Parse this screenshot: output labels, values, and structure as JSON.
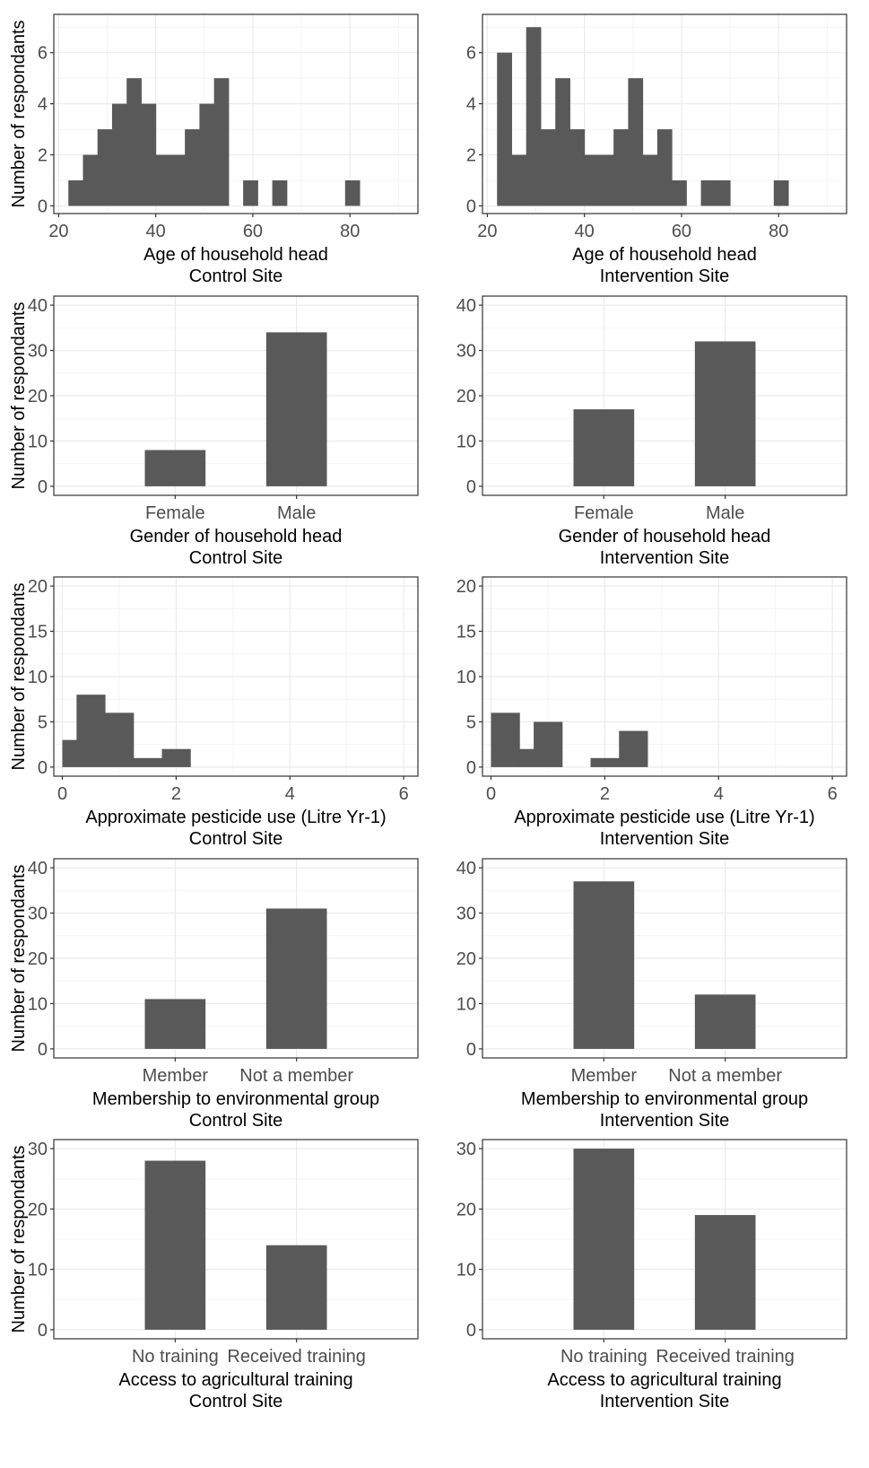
{
  "figure": {
    "y_axis_label": "Number of respondants"
  },
  "colors": {
    "bar": "#595959",
    "grid_major": "#ebebeb",
    "grid_minor": "#f4f4f4",
    "panel_border": "#333333",
    "tick_text": "#4d4d4d",
    "axis_title": "#000000"
  },
  "chart_data": [
    {
      "id": "age-control",
      "type": "bar",
      "subtype": "histogram",
      "site": "Control Site",
      "xlabel": "Age of household head",
      "ylabel": "Number of respondants",
      "xlim": [
        19,
        94
      ],
      "ylim": [
        -0.3,
        7.5
      ],
      "xticks": [
        20,
        40,
        60,
        80
      ],
      "yticks": [
        0,
        2,
        4,
        6
      ],
      "bin_width": 3,
      "x": [
        23.5,
        26.5,
        29.5,
        32.5,
        35.5,
        38.5,
        41.5,
        44.5,
        47.5,
        50.5,
        53.5,
        59.5,
        65.5,
        80.5
      ],
      "values": [
        1,
        2,
        3,
        4,
        5,
        4,
        2,
        2,
        3,
        4,
        5,
        1,
        1,
        1
      ]
    },
    {
      "id": "age-intervention",
      "type": "bar",
      "subtype": "histogram",
      "site": "Intervention Site",
      "xlabel": "Age of household head",
      "ylabel": "Number of respondants",
      "xlim": [
        19,
        94
      ],
      "ylim": [
        -0.3,
        7.5
      ],
      "xticks": [
        20,
        40,
        60,
        80
      ],
      "yticks": [
        0,
        2,
        4,
        6
      ],
      "bin_width": 3,
      "x": [
        23.5,
        26.5,
        29.5,
        32.5,
        35.5,
        38.5,
        41.5,
        44.5,
        47.5,
        50.5,
        53.5,
        56.5,
        59.5,
        65.5,
        68.5,
        80.5
      ],
      "values": [
        6,
        2,
        7,
        3,
        5,
        3,
        2,
        2,
        3,
        5,
        2,
        3,
        1,
        1,
        1,
        1
      ]
    },
    {
      "id": "gender-control",
      "type": "bar",
      "site": "Control Site",
      "xlabel": "Gender of household head",
      "ylabel": "Number of respondants",
      "categories": [
        "Female",
        "Male"
      ],
      "values": [
        8,
        34
      ],
      "ylim": [
        -2,
        42
      ],
      "yticks": [
        0,
        10,
        20,
        30,
        40
      ]
    },
    {
      "id": "gender-intervention",
      "type": "bar",
      "site": "Intervention Site",
      "xlabel": "Gender of household head",
      "ylabel": "Number of respondants",
      "categories": [
        "Female",
        "Male"
      ],
      "values": [
        17,
        32
      ],
      "ylim": [
        -2,
        42
      ],
      "yticks": [
        0,
        10,
        20,
        30,
        40
      ]
    },
    {
      "id": "pesticide-control",
      "type": "bar",
      "subtype": "histogram",
      "site": "Control Site",
      "xlabel": "Approximate pesticide use (Litre Yr-1)",
      "ylabel": "Number of respondants",
      "xlim": [
        -0.15,
        6.25
      ],
      "ylim": [
        -1,
        21
      ],
      "xticks": [
        0,
        2,
        4,
        6
      ],
      "yticks": [
        0,
        5,
        10,
        15,
        20
      ],
      "bin_width": 0.25,
      "x": [
        0.125,
        0.5,
        1.0,
        1.5,
        2.0
      ],
      "widths": [
        0.25,
        0.5,
        0.5,
        0.5,
        0.5
      ],
      "values": [
        3,
        8,
        6,
        1,
        2
      ]
    },
    {
      "id": "pesticide-intervention",
      "type": "bar",
      "subtype": "histogram",
      "site": "Intervention Site",
      "xlabel": "Approximate pesticide use (Litre Yr-1)",
      "ylabel": "Number of respondants",
      "xlim": [
        -0.15,
        6.25
      ],
      "ylim": [
        -1,
        21
      ],
      "xticks": [
        0,
        2,
        4,
        6
      ],
      "yticks": [
        0,
        5,
        10,
        15,
        20
      ],
      "x": [
        0.25,
        0.625,
        1.0,
        2.0,
        2.5
      ],
      "widths": [
        0.5,
        0.25,
        0.5,
        0.5,
        0.5
      ],
      "values": [
        6,
        2,
        5,
        1,
        4
      ]
    },
    {
      "id": "membership-control",
      "type": "bar",
      "site": "Control Site",
      "xlabel": "Membership to environmental group",
      "ylabel": "Number of respondants",
      "categories": [
        "Member",
        "Not a member"
      ],
      "values": [
        11,
        31
      ],
      "ylim": [
        -2,
        42
      ],
      "yticks": [
        0,
        10,
        20,
        30,
        40
      ]
    },
    {
      "id": "membership-intervention",
      "type": "bar",
      "site": "Intervention Site",
      "xlabel": "Membership to environmental group",
      "ylabel": "Number of respondants",
      "categories": [
        "Member",
        "Not a member"
      ],
      "values": [
        37,
        12
      ],
      "ylim": [
        -2,
        42
      ],
      "yticks": [
        0,
        10,
        20,
        30,
        40
      ]
    },
    {
      "id": "training-control",
      "type": "bar",
      "site": "Control Site",
      "xlabel": "Access to agricultural training",
      "ylabel": "Number of respondants",
      "categories": [
        "No training",
        "Received training"
      ],
      "values": [
        28,
        14
      ],
      "ylim": [
        -1.5,
        31.5
      ],
      "yticks": [
        0,
        10,
        20,
        30
      ]
    },
    {
      "id": "training-intervention",
      "type": "bar",
      "site": "Intervention Site",
      "xlabel": "Access to agricultural training",
      "ylabel": "Number of respondants",
      "categories": [
        "No training",
        "Received training"
      ],
      "values": [
        30,
        19
      ],
      "ylim": [
        -1.5,
        31.5
      ],
      "yticks": [
        0,
        10,
        20,
        30
      ]
    }
  ]
}
